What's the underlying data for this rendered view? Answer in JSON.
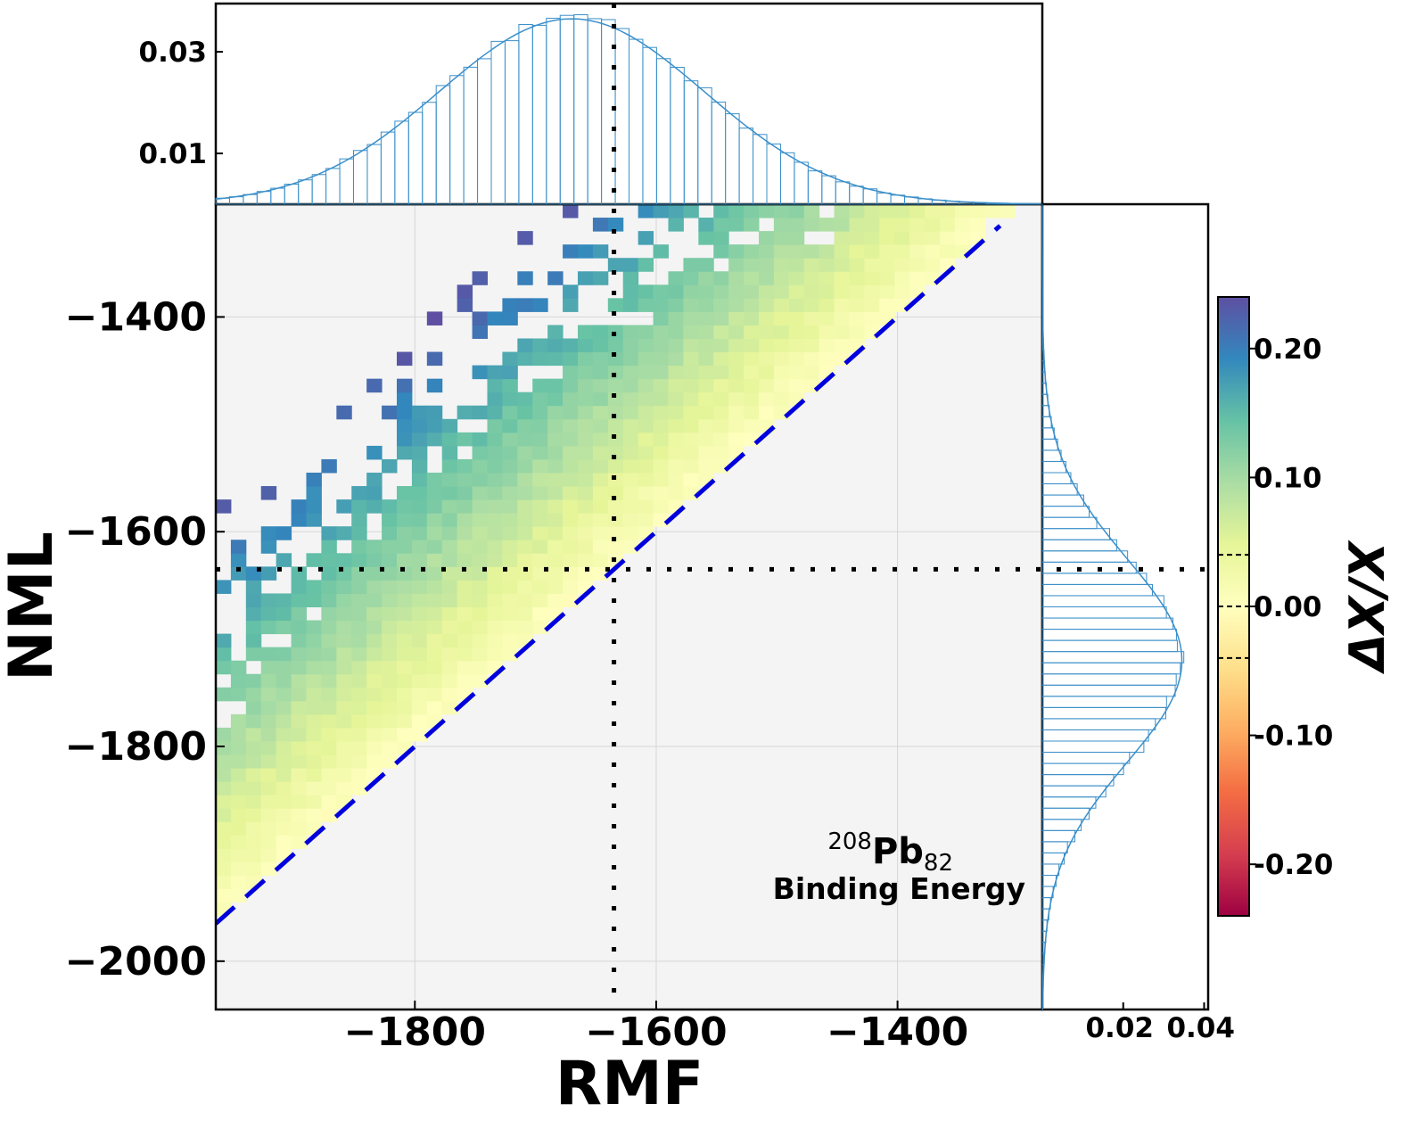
{
  "chart_data": {
    "type": "heatmap",
    "title": "",
    "xlabel": "RMF",
    "ylabel": "NML",
    "xlim": [
      -1965,
      -1280
    ],
    "ylim": [
      -2045,
      -1295
    ],
    "xticks": [
      -1800,
      -1600,
      -1400
    ],
    "yticks": [
      -1400,
      -1600,
      -1800,
      -2000
    ],
    "xtick_labels": [
      "−1800",
      "−1600",
      "−1400"
    ],
    "ytick_labels": [
      "−1400",
      "−1600",
      "−1800",
      "−2000"
    ],
    "grid": true,
    "reference_value": -1635,
    "diagonal": "y = x",
    "annotation": {
      "mass_number": "208",
      "element": "Pb",
      "proton_number": "82",
      "quantity": "Binding Energy"
    },
    "colorbar": {
      "label": "ΔX/X",
      "range": [
        -0.24,
        0.24
      ],
      "ticks": [
        0.2,
        0.1,
        0.0,
        -0.1,
        -0.2
      ],
      "tick_labels": [
        "0.20",
        "0.10",
        "0.00",
        "-0.10",
        "-0.20"
      ],
      "dashed_levels": [
        0.04,
        0.0,
        -0.04
      ],
      "colormap": "Spectral"
    },
    "top_histogram": {
      "axis": "RMF",
      "yticks": [
        0.01,
        0.03
      ],
      "ytick_labels": [
        "0.01",
        "0.03"
      ],
      "ylim": [
        0,
        0.0395
      ],
      "center": -1670,
      "sigma": 110,
      "peak_density": 0.0365
    },
    "right_histogram": {
      "axis": "NML",
      "xticks": [
        0.02,
        0.04
      ],
      "xtick_labels": [
        "0.02",
        "0.04"
      ],
      "xlim": [
        0,
        0.041
      ],
      "center": -1720,
      "sigma": 95,
      "peak_density": 0.0345
    }
  },
  "colors": {
    "panel_background": "#f4f4f4",
    "histogram": "#3b8fc9",
    "diagonal": "#0000dd",
    "reference_lines": "#000000"
  }
}
